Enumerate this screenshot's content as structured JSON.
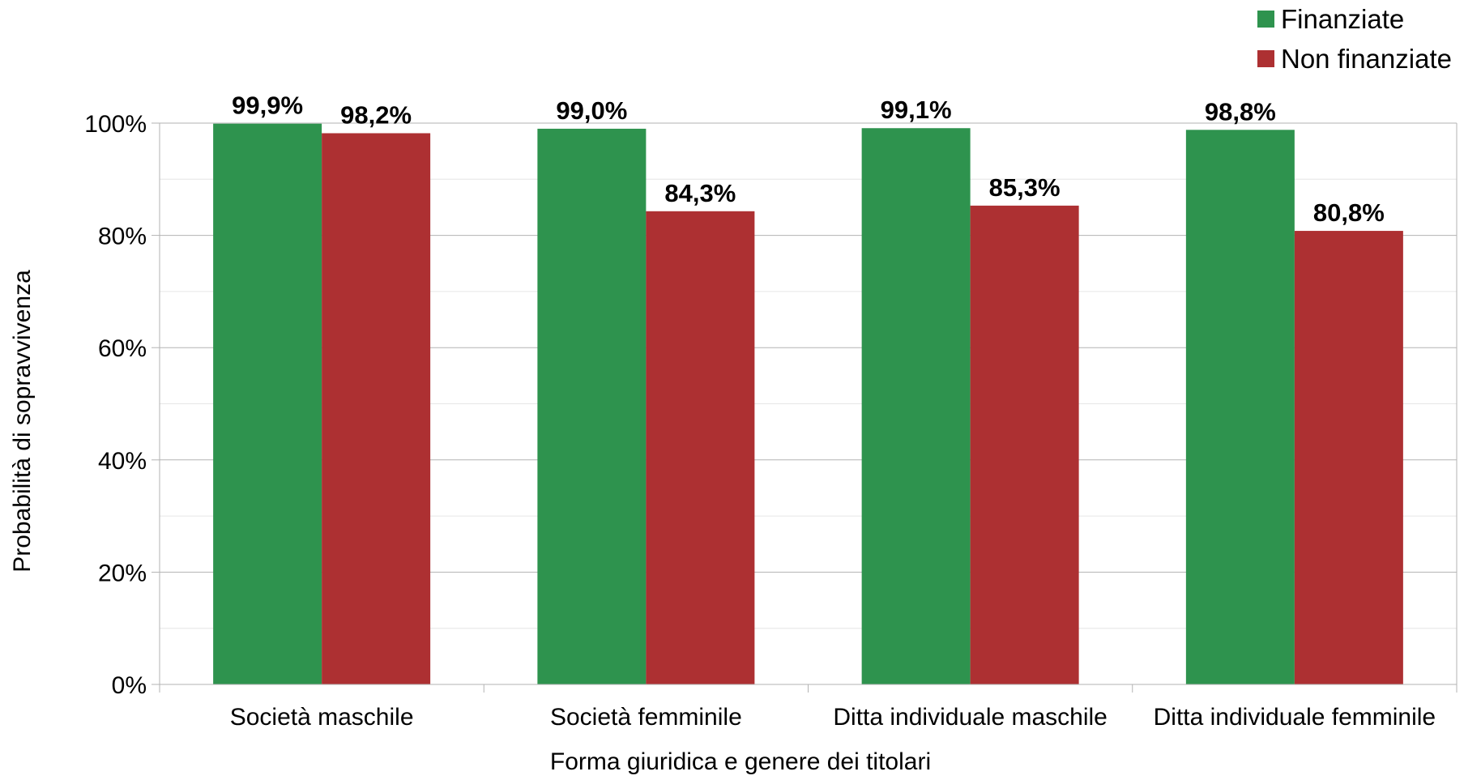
{
  "chart_data": {
    "type": "bar",
    "categories": [
      "Società maschile",
      "Società femminile",
      "Ditta individuale maschile",
      "Ditta individuale femminile"
    ],
    "series": [
      {
        "name": "Finanziate",
        "values": [
          99.9,
          99.0,
          99.1,
          98.8
        ],
        "labels": [
          "99,9%",
          "99,0%",
          "99,1%",
          "98,8%"
        ],
        "color": "#2e934e"
      },
      {
        "name": "Non finanziate",
        "values": [
          98.2,
          84.3,
          85.3,
          80.8
        ],
        "labels": [
          "98,2%",
          "84,3%",
          "85,3%",
          "80,8%"
        ],
        "color": "#ad3032"
      }
    ],
    "title": "",
    "xlabel": "Forma giuridica e genere dei titolari",
    "ylabel": "Probabilità di sopravvivenza",
    "ylim": [
      0,
      100
    ],
    "yticks": [
      0,
      20,
      40,
      60,
      80,
      100
    ],
    "ytick_labels": [
      "0%",
      "20%",
      "40%",
      "60%",
      "80%",
      "100%"
    ],
    "grid": true,
    "legend_position": "top-right"
  }
}
